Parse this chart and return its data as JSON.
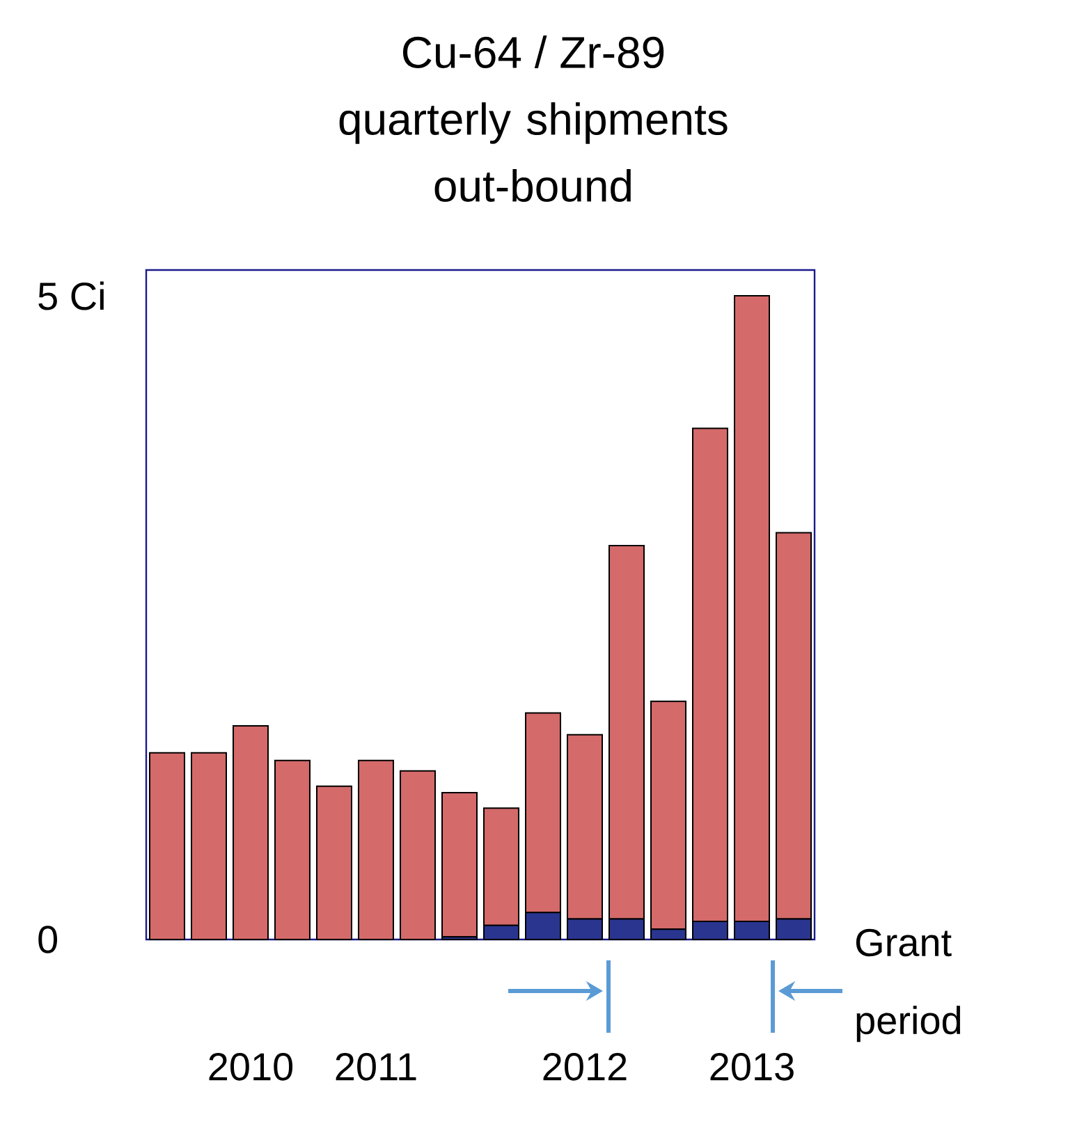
{
  "chart_data": {
    "type": "bar",
    "title": "Cu-64 / Zr-89",
    "subtitle": "quarterly shipments out-bound",
    "categories": [
      null,
      null,
      "2010",
      null,
      null,
      "2011",
      null,
      null,
      null,
      null,
      "2012",
      null,
      null,
      null,
      "2013",
      null
    ],
    "stacked": true,
    "series": [
      {
        "color": "#2a3590",
        "values": [
          0,
          0,
          0,
          0,
          0,
          0,
          0,
          0.02,
          0.11,
          0.21,
          0.16,
          0.16,
          0.08,
          0.14,
          0.14,
          0.16
        ]
      },
      {
        "color": "#d46a6a",
        "values": [
          1.45,
          1.45,
          1.66,
          1.39,
          1.19,
          1.39,
          1.31,
          1.12,
          0.91,
          1.55,
          1.43,
          2.9,
          1.77,
          3.83,
          4.86,
          3.0
        ]
      }
    ],
    "ylim": [
      0,
      5.2
    ],
    "yticks": [
      0,
      {
        "value": 5,
        "label": "5 Ci"
      }
    ],
    "annotations": [
      "Grant period"
    ]
  }
}
